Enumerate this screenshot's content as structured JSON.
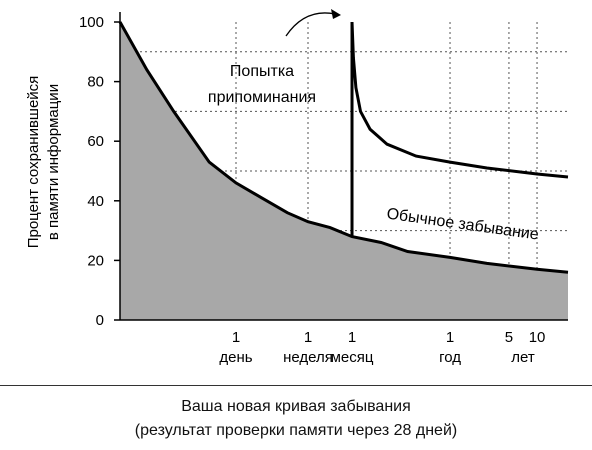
{
  "chart_data": {
    "type": "area",
    "x_scale": "log-time",
    "ylim": [
      0,
      100
    ],
    "yticks": [
      0,
      20,
      40,
      60,
      80,
      100
    ],
    "ylabel": [
      "Процент сохранившейся",
      "в памяти информации"
    ],
    "xticks": [
      {
        "num": "1",
        "unit": "день",
        "days": 1
      },
      {
        "num": "1",
        "unit": "неделя",
        "days": 7
      },
      {
        "num": "1",
        "unit": "месяц",
        "days": 28
      },
      {
        "num": "1",
        "unit": "год",
        "days": 365
      },
      {
        "num": "5",
        "unit": "лет",
        "days": 1825
      },
      {
        "num": "10",
        "unit": "",
        "days": 3650
      }
    ],
    "years_label": "лет",
    "grid": true,
    "series": [
      {
        "name": "Обычное забывание",
        "points": [
          [
            0.05,
            100
          ],
          [
            0.1,
            84
          ],
          [
            0.2,
            70
          ],
          [
            0.5,
            53
          ],
          [
            1,
            46
          ],
          [
            2,
            41
          ],
          [
            4,
            36
          ],
          [
            7,
            33
          ],
          [
            14,
            31
          ],
          [
            28,
            28
          ],
          [
            60,
            26
          ],
          [
            120,
            23
          ],
          [
            365,
            21
          ],
          [
            1000,
            19
          ],
          [
            3650,
            17
          ],
          [
            7000,
            16
          ]
        ]
      },
      {
        "name": "Попытка припоминания",
        "recall_day": 28,
        "points": [
          [
            28,
            100
          ],
          [
            29,
            88
          ],
          [
            31,
            78
          ],
          [
            35,
            70
          ],
          [
            45,
            64
          ],
          [
            70,
            59
          ],
          [
            150,
            55
          ],
          [
            365,
            53
          ],
          [
            1000,
            51
          ],
          [
            3650,
            49
          ],
          [
            7000,
            48
          ]
        ]
      }
    ],
    "annotations": {
      "recall": [
        "Попытка",
        "припоминания"
      ],
      "normal": "Обычное забывание"
    }
  },
  "caption": {
    "line1": "Ваша новая кривая забывания",
    "line2": "(результат проверки памяти через 28 дней)"
  },
  "colors": {
    "shade": "#a8a8a8",
    "line": "#000000",
    "grid": "#555555"
  }
}
